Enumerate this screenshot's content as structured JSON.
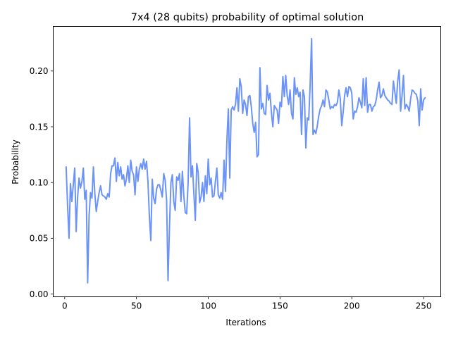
{
  "chart_data": {
    "type": "line",
    "title": "7x4 (28 qubits) probability of optimal solution",
    "xlabel": "Iterations",
    "ylabel": "Probability",
    "xlim": [
      -8,
      262
    ],
    "ylim": [
      -0.0025,
      0.24
    ],
    "x_ticks": [
      0,
      50,
      100,
      150,
      200,
      250
    ],
    "x_tick_labels": [
      "0",
      "50",
      "100",
      "150",
      "200",
      "250"
    ],
    "y_ticks": [
      0.0,
      0.05,
      0.1,
      0.15,
      0.2
    ],
    "y_tick_labels": [
      "0.00",
      "0.05",
      "0.10",
      "0.15",
      "0.20"
    ],
    "grid": false,
    "line_color": "#6b93f8",
    "x_start": 1,
    "x_step": 1,
    "series": [
      {
        "values": [
          0.114,
          0.08,
          0.05,
          0.099,
          0.083,
          0.098,
          0.113,
          0.056,
          0.087,
          0.104,
          0.095,
          0.101,
          0.113,
          0.085,
          0.093,
          0.01,
          0.07,
          0.091,
          0.086,
          0.114,
          0.09,
          0.074,
          0.083,
          0.091,
          0.097,
          0.089,
          0.088,
          0.087,
          0.085,
          0.09,
          0.087,
          0.108,
          0.115,
          0.115,
          0.122,
          0.101,
          0.118,
          0.106,
          0.114,
          0.103,
          0.107,
          0.097,
          0.103,
          0.115,
          0.1,
          0.12,
          0.11,
          0.107,
          0.089,
          0.114,
          0.101,
          0.112,
          0.117,
          0.112,
          0.121,
          0.112,
          0.119,
          0.101,
          0.07,
          0.048,
          0.103,
          0.086,
          0.081,
          0.094,
          0.098,
          0.098,
          0.093,
          0.087,
          0.108,
          0.102,
          0.084,
          0.012,
          0.06,
          0.1,
          0.107,
          0.083,
          0.075,
          0.105,
          0.102,
          0.108,
          0.083,
          0.11,
          0.088,
          0.073,
          0.072,
          0.101,
          0.158,
          0.105,
          0.115,
          0.09,
          0.066,
          0.117,
          0.109,
          0.082,
          0.087,
          0.1,
          0.083,
          0.106,
          0.09,
          0.121,
          0.098,
          0.104,
          0.087,
          0.088,
          0.101,
          0.113,
          0.089,
          0.086,
          0.091,
          0.085,
          0.12,
          0.092,
          0.138,
          0.166,
          0.104,
          0.165,
          0.168,
          0.165,
          0.17,
          0.185,
          0.164,
          0.193,
          0.186,
          0.162,
          0.174,
          0.17,
          0.16,
          0.177,
          0.178,
          0.168,
          0.153,
          0.145,
          0.154,
          0.123,
          0.125,
          0.203,
          0.166,
          0.171,
          0.162,
          0.161,
          0.187,
          0.174,
          0.18,
          0.163,
          0.15,
          0.169,
          0.167,
          0.165,
          0.153,
          0.172,
          0.168,
          0.195,
          0.177,
          0.196,
          0.178,
          0.17,
          0.183,
          0.162,
          0.157,
          0.194,
          0.179,
          0.185,
          0.177,
          0.181,
          0.143,
          0.183,
          0.177,
          0.131,
          0.158,
          0.156,
          0.188,
          0.229,
          0.143,
          0.147,
          0.144,
          0.151,
          0.16,
          0.166,
          0.169,
          0.174,
          0.168,
          0.183,
          0.181,
          0.174,
          0.166,
          0.168,
          0.167,
          0.17,
          0.169,
          0.172,
          0.183,
          0.175,
          0.151,
          0.163,
          0.178,
          0.185,
          0.177,
          0.186,
          0.185,
          0.18,
          0.157,
          0.164,
          0.163,
          0.168,
          0.176,
          0.172,
          0.167,
          0.193,
          0.169,
          0.194,
          0.163,
          0.17,
          0.17,
          0.164,
          0.168,
          0.169,
          0.174,
          0.183,
          0.19,
          0.176,
          0.178,
          0.184,
          0.178,
          0.176,
          0.174,
          0.173,
          0.171,
          0.17,
          0.191,
          0.181,
          0.171,
          0.191,
          0.201,
          0.164,
          0.178,
          0.196,
          0.166,
          0.17,
          0.168,
          0.164,
          0.175,
          0.183,
          0.182,
          0.18,
          0.179,
          0.173,
          0.151,
          0.184,
          0.165,
          0.174,
          0.176
        ]
      }
    ]
  }
}
